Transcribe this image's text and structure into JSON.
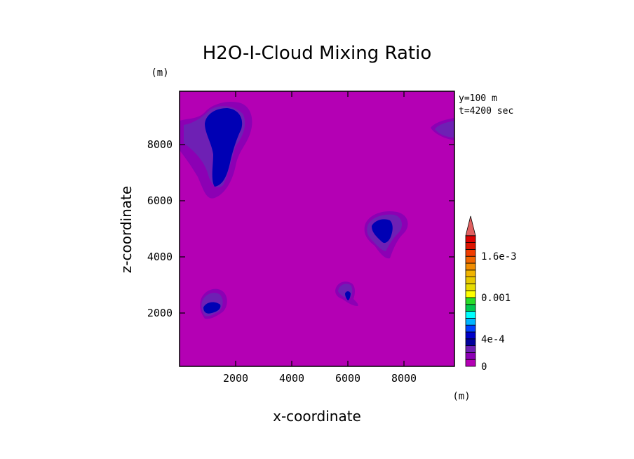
{
  "chart_data": {
    "type": "heatmap",
    "title": "H2O-I-Cloud Mixing Ratio",
    "xlabel": "x-coordinate",
    "ylabel": "z-coordinate",
    "x_unit": "(m)",
    "y_unit": "(m)",
    "annotations": [
      "y=100 m",
      "t=4200 sec"
    ],
    "xlim": [
      0,
      9800
    ],
    "ylim": [
      100,
      9900
    ],
    "xticks": [
      2000,
      4000,
      6000,
      8000
    ],
    "yticks": [
      2000,
      4000,
      6000,
      8000
    ],
    "colorbar": {
      "levels": [
        0,
        0.0001,
        0.0002,
        0.0003,
        0.0004,
        0.0005,
        0.0006,
        0.0007,
        0.0008,
        0.0009,
        0.001,
        0.0011,
        0.0012,
        0.0013,
        0.0014,
        0.0015,
        0.0016,
        0.0017,
        0.0018,
        0.0019
      ],
      "tick_labels": [
        "0",
        "4e-4",
        "0.001",
        "1.6e-3"
      ],
      "extend": "max",
      "colors": [
        "#b400b4",
        "#8c00b4",
        "#6e20b4",
        "#00009c",
        "#0000c8",
        "#0040ff",
        "#00b4ff",
        "#00ffff",
        "#00c850",
        "#28dc28",
        "#ffff00",
        "#e6dc00",
        "#e6c800",
        "#f0b400",
        "#f08c00",
        "#f06400",
        "#f03c00",
        "#dc1400",
        "#dc0000",
        "#e06060"
      ]
    },
    "features": [
      {
        "name": "upper-left cloud",
        "x_range": [
          800,
          2600
        ],
        "z_range": [
          6500,
          9300
        ],
        "max_level": 0.0004
      },
      {
        "name": "right-edge cloud",
        "x_range": [
          9000,
          9800
        ],
        "z_range": [
          8300,
          8900
        ],
        "max_level": 0.0002
      },
      {
        "name": "right cloud",
        "x_range": [
          6700,
          7900
        ],
        "z_range": [
          4200,
          5400
        ],
        "max_level": 0.0004
      },
      {
        "name": "lower-left cloud",
        "x_range": [
          800,
          1800
        ],
        "z_range": [
          1900,
          2800
        ],
        "max_level": 0.0004
      },
      {
        "name": "center-lower cloud",
        "x_range": [
          5800,
          6600
        ],
        "z_range": [
          2300,
          3100
        ],
        "max_level": 0.0004
      }
    ]
  }
}
